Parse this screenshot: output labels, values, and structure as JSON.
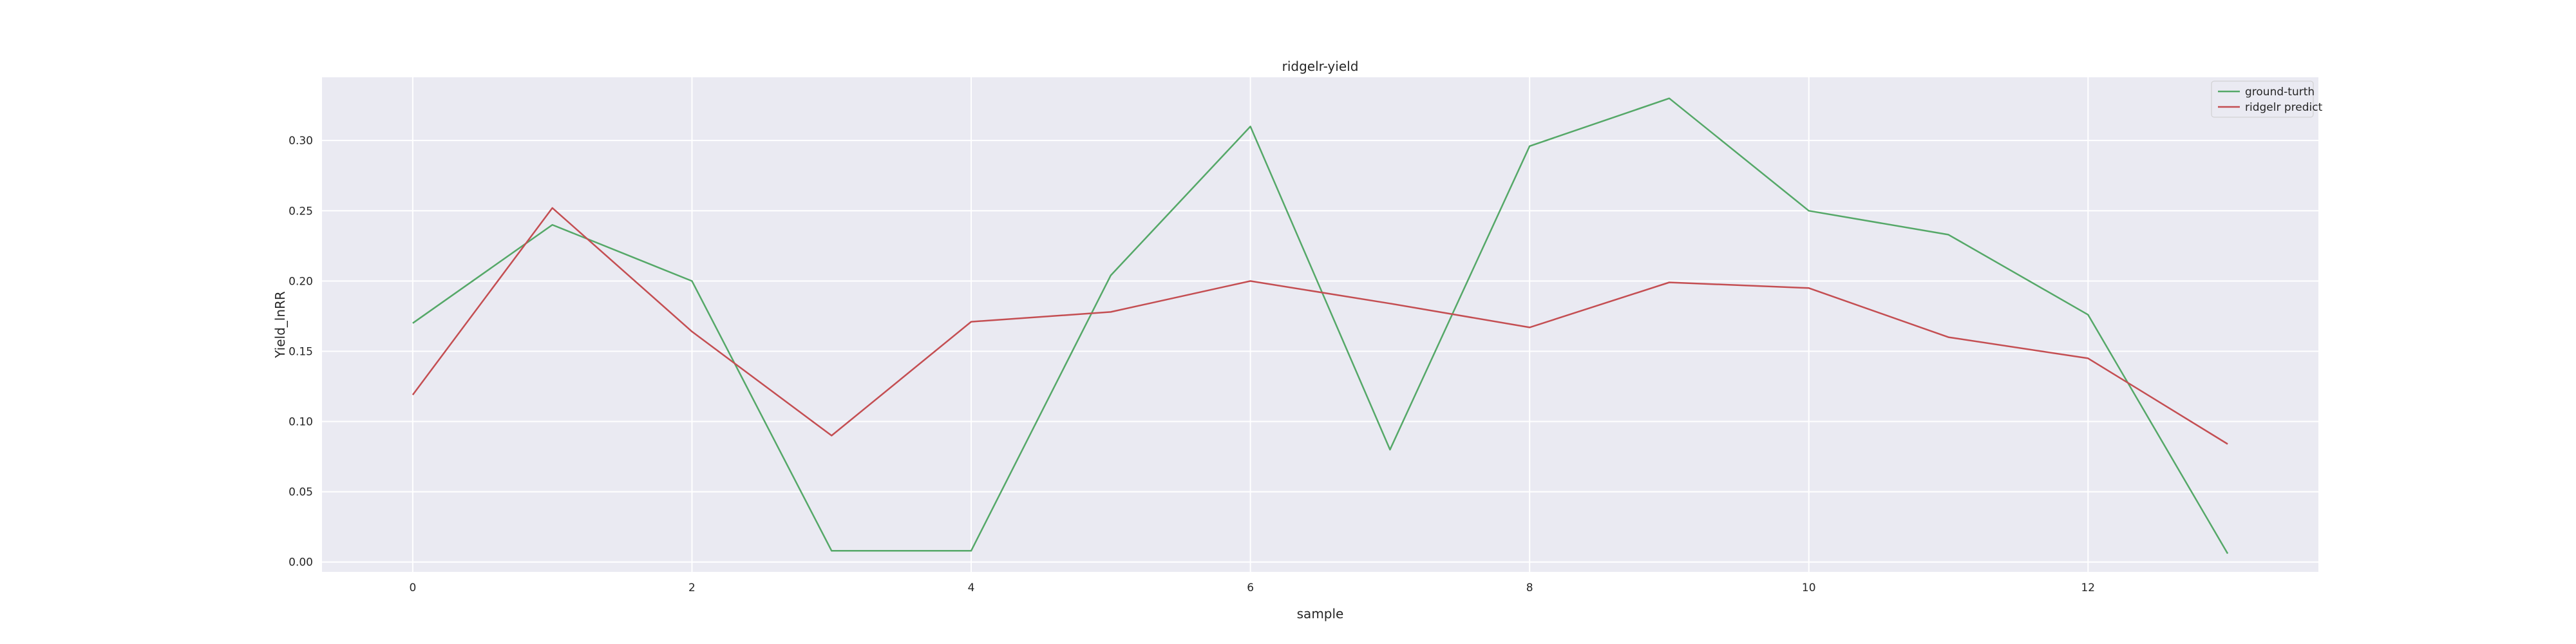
{
  "chart_data": {
    "type": "line",
    "title": "ridgelr-yield",
    "xlabel": "sample",
    "ylabel": "Yield_lnRR",
    "x": [
      0,
      1,
      2,
      3,
      4,
      5,
      6,
      7,
      8,
      9,
      10,
      11,
      12,
      13
    ],
    "xlim": [
      -0.65,
      13.65
    ],
    "ylim": [
      -0.007,
      0.345
    ],
    "xticks": [
      0,
      2,
      4,
      6,
      8,
      10,
      12
    ],
    "yticks": [
      0.0,
      0.05,
      0.1,
      0.15,
      0.2,
      0.25,
      0.3
    ],
    "xtick_labels": [
      "0",
      "2",
      "4",
      "6",
      "8",
      "10",
      "12"
    ],
    "ytick_labels": [
      "0.00",
      "0.05",
      "0.10",
      "0.15",
      "0.20",
      "0.25",
      "0.30"
    ],
    "grid": true,
    "legend_position": "top-right",
    "background": "#eaeaf2",
    "series": [
      {
        "name": "ground-turth",
        "color": "#55a868",
        "values": [
          0.17,
          0.24,
          0.2,
          0.008,
          0.008,
          0.204,
          0.31,
          0.08,
          0.296,
          0.33,
          0.25,
          0.233,
          0.176,
          0.006
        ]
      },
      {
        "name": "ridgelr predict",
        "color": "#c44e52",
        "values": [
          0.119,
          0.252,
          0.164,
          0.09,
          0.171,
          0.178,
          0.2,
          0.184,
          0.167,
          0.199,
          0.195,
          0.16,
          0.145,
          0.084
        ]
      }
    ]
  }
}
